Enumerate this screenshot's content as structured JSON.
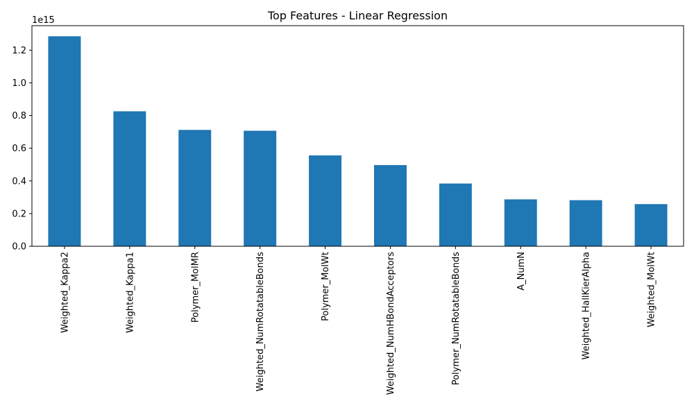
{
  "chart_data": {
    "type": "bar",
    "title": "Top Features - Linear Regression",
    "xlabel": "",
    "ylabel": "",
    "y_offset_label": "1e15",
    "scale": 1000000000000000.0,
    "categories": [
      "Weighted_Kappa2",
      "Weighted_Kappa1",
      "Polymer_MolMR",
      "Weighted_NumRotatableBonds",
      "Polymer_MolWt",
      "Weighted_NumHBondAcceptors",
      "Polymer_NumRotatableBonds",
      "A_NumN",
      "Weighted_HallKierAlpha",
      "Weighted_MolWt"
    ],
    "values": [
      1285000000000000.0,
      826000000000000.0,
      712000000000000.0,
      707000000000000.0,
      556000000000000.0,
      497000000000000.0,
      384000000000000.0,
      287000000000000.0,
      282000000000000.0,
      258000000000000.0
    ],
    "ylim": [
      0,
      1350000000000000.0
    ],
    "yticks": [
      0,
      200000000000000.0,
      400000000000000.0,
      600000000000000.0,
      800000000000000.0,
      1000000000000000.0,
      1200000000000000.0
    ],
    "ytick_labels": [
      "0.0",
      "0.2",
      "0.4",
      "0.6",
      "0.8",
      "1.0",
      "1.2"
    ],
    "bar_color": "#1f77b4",
    "grid": false,
    "legend": "none"
  }
}
